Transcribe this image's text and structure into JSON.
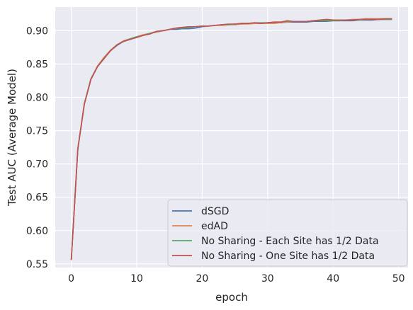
{
  "chart_data": {
    "type": "line",
    "xlabel": "epoch",
    "ylabel": "Test AUC (Average Model)",
    "xlim": [
      -2.45,
      51.45
    ],
    "ylim": [
      0.5445,
      0.9355
    ],
    "xticks": [
      0,
      10,
      20,
      30,
      40,
      50
    ],
    "xtick_labels": [
      "0",
      "10",
      "20",
      "30",
      "40",
      "50"
    ],
    "yticks": [
      0.55,
      0.6,
      0.65,
      0.7,
      0.75,
      0.8,
      0.85,
      0.9
    ],
    "ytick_labels": [
      "0.55",
      "0.60",
      "0.65",
      "0.70",
      "0.75",
      "0.80",
      "0.85",
      "0.90"
    ],
    "grid": true,
    "background": "#eaeaf2",
    "legend_position": "lower-right",
    "x": [
      0,
      1,
      2,
      3,
      4,
      5,
      6,
      7,
      8,
      9,
      10,
      11,
      12,
      13,
      14,
      15,
      16,
      17,
      18,
      19,
      20,
      21,
      22,
      23,
      24,
      25,
      26,
      27,
      28,
      29,
      30,
      31,
      32,
      33,
      34,
      35,
      36,
      37,
      38,
      39,
      40,
      41,
      42,
      43,
      44,
      45,
      46,
      47,
      48,
      49
    ],
    "series": [
      {
        "name": "dSGD",
        "color": "#4c72b0",
        "values": [
          0.556,
          0.722,
          0.79,
          0.827,
          0.846,
          0.859,
          0.87,
          0.878,
          0.884,
          0.887,
          0.89,
          0.893,
          0.896,
          0.898,
          0.9,
          0.902,
          0.902,
          0.903,
          0.903,
          0.904,
          0.906,
          0.907,
          0.908,
          0.909,
          0.909,
          0.91,
          0.91,
          0.911,
          0.911,
          0.911,
          0.912,
          0.912,
          0.912,
          0.913,
          0.913,
          0.913,
          0.913,
          0.914,
          0.914,
          0.914,
          0.915,
          0.915,
          0.915,
          0.915,
          0.916,
          0.916,
          0.916,
          0.917,
          0.917,
          0.917
        ]
      },
      {
        "name": "edAD",
        "color": "#dd8452",
        "values": [
          0.556,
          0.723,
          0.791,
          0.828,
          0.847,
          0.86,
          0.871,
          0.879,
          0.885,
          0.888,
          0.891,
          0.894,
          0.896,
          0.898,
          0.9,
          0.902,
          0.904,
          0.905,
          0.906,
          0.906,
          0.907,
          0.907,
          0.908,
          0.908,
          0.909,
          0.909,
          0.91,
          0.91,
          0.911,
          0.911,
          0.911,
          0.911,
          0.912,
          0.913,
          0.914,
          0.914,
          0.914,
          0.915,
          0.916,
          0.916,
          0.916,
          0.916,
          0.916,
          0.917,
          0.917,
          0.918,
          0.918,
          0.918,
          0.918,
          0.918
        ]
      },
      {
        "name": "No Sharing - Each Site has 1/2 Data",
        "color": "#55a868",
        "values": [
          0.556,
          0.723,
          0.791,
          0.828,
          0.846,
          0.859,
          0.87,
          0.879,
          0.884,
          0.888,
          0.891,
          0.893,
          0.896,
          0.899,
          0.9,
          0.902,
          0.904,
          0.904,
          0.905,
          0.906,
          0.907,
          0.907,
          0.908,
          0.909,
          0.909,
          0.91,
          0.911,
          0.911,
          0.912,
          0.912,
          0.912,
          0.913,
          0.913,
          0.914,
          0.914,
          0.914,
          0.914,
          0.915,
          0.915,
          0.915,
          0.915,
          0.915,
          0.916,
          0.916,
          0.916,
          0.917,
          0.917,
          0.917,
          0.917,
          0.917
        ]
      },
      {
        "name": "No Sharing - One Site has 1/2 Data",
        "color": "#c44e52",
        "values": [
          0.556,
          0.723,
          0.79,
          0.827,
          0.846,
          0.858,
          0.87,
          0.879,
          0.884,
          0.887,
          0.89,
          0.893,
          0.895,
          0.899,
          0.9,
          0.902,
          0.904,
          0.905,
          0.906,
          0.906,
          0.907,
          0.907,
          0.908,
          0.909,
          0.91,
          0.91,
          0.911,
          0.911,
          0.912,
          0.911,
          0.912,
          0.913,
          0.913,
          0.915,
          0.914,
          0.914,
          0.914,
          0.915,
          0.916,
          0.917,
          0.916,
          0.916,
          0.916,
          0.916,
          0.917,
          0.917,
          0.917,
          0.917,
          0.918,
          0.918
        ]
      }
    ]
  }
}
